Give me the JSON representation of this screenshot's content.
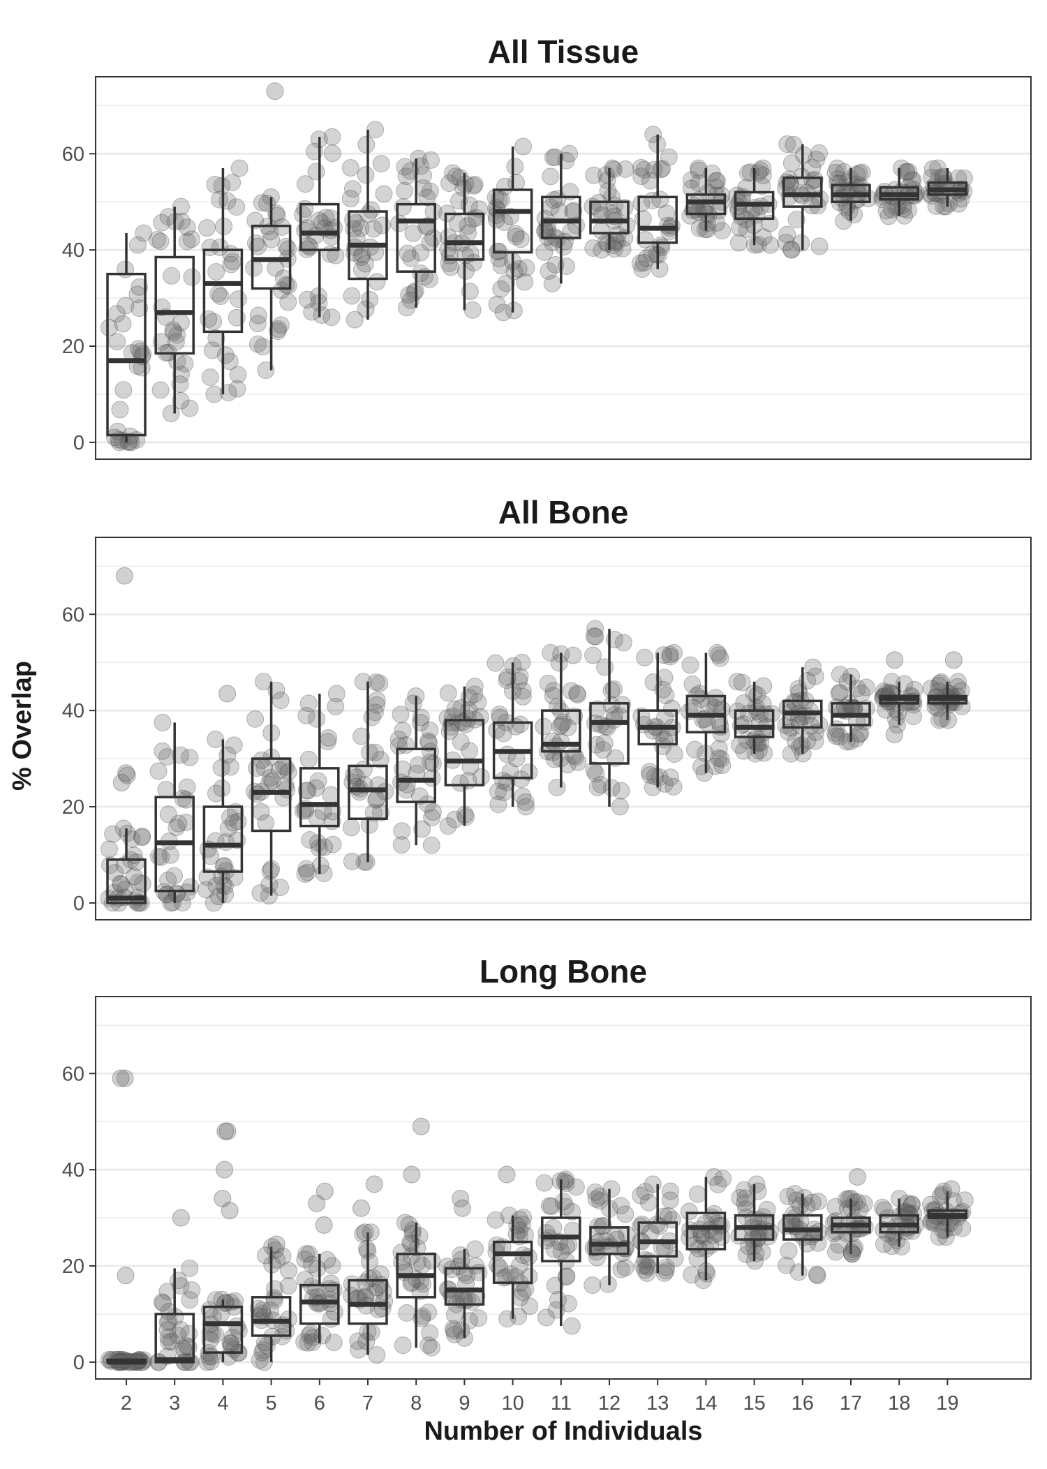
{
  "chart_data": {
    "type": "boxplot",
    "xlabel": "Number of Individuals",
    "ylabel": "% Overlap",
    "ylim": [
      -3.5,
      76
    ],
    "yticks": [
      0,
      20,
      40,
      60
    ],
    "categories": [
      "2",
      "3",
      "4",
      "5",
      "6",
      "7",
      "8",
      "9",
      "10",
      "11",
      "12",
      "13",
      "14",
      "15",
      "16",
      "17",
      "18",
      "19"
    ],
    "grid": true,
    "legend": "none",
    "colors": {
      "box": "#333333",
      "point": "#666666",
      "gridline": "#ebebeb",
      "panel_border": "#333333"
    },
    "panels": [
      {
        "title": "All Tissue",
        "boxes": [
          {
            "x": "2",
            "min": 0,
            "q1": 1.5,
            "median": 17,
            "q3": 35,
            "max": 43.5
          },
          {
            "x": "3",
            "min": 6,
            "q1": 18.5,
            "median": 27,
            "q3": 38.5,
            "max": 49
          },
          {
            "x": "4",
            "min": 10,
            "q1": 23,
            "median": 33,
            "q3": 40,
            "max": 57
          },
          {
            "x": "5",
            "min": 15,
            "q1": 32,
            "median": 38,
            "q3": 45,
            "max": 51
          },
          {
            "x": "6",
            "min": 26,
            "q1": 40,
            "median": 43.5,
            "q3": 49.5,
            "max": 63.5
          },
          {
            "x": "7",
            "min": 25.5,
            "q1": 34,
            "median": 41,
            "q3": 48,
            "max": 65
          },
          {
            "x": "8",
            "min": 28,
            "q1": 35.5,
            "median": 46,
            "q3": 49.5,
            "max": 59
          },
          {
            "x": "9",
            "min": 27.5,
            "q1": 38,
            "median": 41.5,
            "q3": 47.5,
            "max": 56
          },
          {
            "x": "10",
            "min": 27,
            "q1": 39.5,
            "median": 48,
            "q3": 52.5,
            "max": 61.5
          },
          {
            "x": "11",
            "min": 33,
            "q1": 42.5,
            "median": 46,
            "q3": 51,
            "max": 60
          },
          {
            "x": "12",
            "min": 40,
            "q1": 43.5,
            "median": 46,
            "q3": 50,
            "max": 57
          },
          {
            "x": "13",
            "min": 36,
            "q1": 41.5,
            "median": 44.5,
            "q3": 51,
            "max": 64
          },
          {
            "x": "14",
            "min": 44,
            "q1": 47.5,
            "median": 50,
            "q3": 51.5,
            "max": 57
          },
          {
            "x": "15",
            "min": 41,
            "q1": 46.5,
            "median": 49.5,
            "q3": 52,
            "max": 57
          },
          {
            "x": "16",
            "min": 40,
            "q1": 49,
            "median": 51.5,
            "q3": 55,
            "max": 62
          },
          {
            "x": "17",
            "min": 46,
            "q1": 50,
            "median": 51.5,
            "q3": 53.5,
            "max": 57
          },
          {
            "x": "18",
            "min": 47,
            "q1": 50.5,
            "median": 51.5,
            "q3": 53,
            "max": 57
          },
          {
            "x": "19",
            "min": 49,
            "q1": 51.5,
            "median": 52.5,
            "q3": 54,
            "max": 57
          }
        ],
        "outliers": [
          {
            "x": "5",
            "y": 73
          }
        ]
      },
      {
        "title": "All Bone",
        "boxes": [
          {
            "x": "2",
            "min": 0,
            "q1": 0,
            "median": 1,
            "q3": 9,
            "max": 15.5
          },
          {
            "x": "3",
            "min": 0,
            "q1": 2.5,
            "median": 12.5,
            "q3": 22,
            "max": 37.5
          },
          {
            "x": "4",
            "min": 0,
            "q1": 6.5,
            "median": 12,
            "q3": 20,
            "max": 34
          },
          {
            "x": "5",
            "min": 1.5,
            "q1": 15,
            "median": 23,
            "q3": 30,
            "max": 46
          },
          {
            "x": "6",
            "min": 6,
            "q1": 16,
            "median": 20.5,
            "q3": 28,
            "max": 43.5
          },
          {
            "x": "7",
            "min": 8.5,
            "q1": 17.5,
            "median": 23.5,
            "q3": 28.5,
            "max": 46
          },
          {
            "x": "8",
            "min": 12,
            "q1": 21,
            "median": 25.5,
            "q3": 32,
            "max": 43
          },
          {
            "x": "9",
            "min": 16,
            "q1": 24.5,
            "median": 29.5,
            "q3": 38,
            "max": 45
          },
          {
            "x": "10",
            "min": 20,
            "q1": 26,
            "median": 31.5,
            "q3": 37.5,
            "max": 50
          },
          {
            "x": "11",
            "min": 24,
            "q1": 31.5,
            "median": 33,
            "q3": 40,
            "max": 52
          },
          {
            "x": "12",
            "min": 20,
            "q1": 29,
            "median": 37.5,
            "q3": 41.5,
            "max": 57
          },
          {
            "x": "13",
            "min": 24,
            "q1": 33,
            "median": 36.5,
            "q3": 40,
            "max": 52
          },
          {
            "x": "14",
            "min": 27,
            "q1": 35.5,
            "median": 39,
            "q3": 43,
            "max": 52
          },
          {
            "x": "15",
            "min": 31,
            "q1": 34.5,
            "median": 36.5,
            "q3": 40,
            "max": 46
          },
          {
            "x": "16",
            "min": 31,
            "q1": 36.5,
            "median": 39.5,
            "q3": 42,
            "max": 49
          },
          {
            "x": "17",
            "min": 33.5,
            "q1": 37,
            "median": 39,
            "q3": 41.5,
            "max": 47.5
          },
          {
            "x": "18",
            "min": 37,
            "q1": 41.5,
            "median": 42.5,
            "q3": 43,
            "max": 46
          },
          {
            "x": "19",
            "min": 38,
            "q1": 41.5,
            "median": 42.5,
            "q3": 43,
            "max": 46
          }
        ],
        "outliers": [
          {
            "x": "2",
            "y": 68
          },
          {
            "x": "2",
            "y": 26.5
          },
          {
            "x": "2",
            "y": 25
          },
          {
            "x": "2",
            "y": 27
          },
          {
            "x": "4",
            "y": 43.5
          },
          {
            "x": "18",
            "y": 50.5
          },
          {
            "x": "18",
            "y": 35
          },
          {
            "x": "19",
            "y": 50.5
          },
          {
            "x": "19",
            "y": 38
          }
        ]
      },
      {
        "title": "Long Bone",
        "boxes": [
          {
            "x": "2",
            "min": 0,
            "q1": 0,
            "median": 0,
            "q3": 0.5,
            "max": 0.5
          },
          {
            "x": "3",
            "min": 0,
            "q1": 0,
            "median": 0.5,
            "q3": 10,
            "max": 19.5
          },
          {
            "x": "4",
            "min": 0,
            "q1": 2,
            "median": 8,
            "q3": 11.5,
            "max": 13
          },
          {
            "x": "5",
            "min": 0,
            "q1": 5.5,
            "median": 8.5,
            "q3": 13.5,
            "max": 24
          },
          {
            "x": "6",
            "min": 4,
            "q1": 8,
            "median": 12.5,
            "q3": 16,
            "max": 22.5
          },
          {
            "x": "7",
            "min": 1.5,
            "q1": 8,
            "median": 12,
            "q3": 17,
            "max": 27
          },
          {
            "x": "8",
            "min": 3,
            "q1": 13.5,
            "median": 18,
            "q3": 22.5,
            "max": 29
          },
          {
            "x": "9",
            "min": 5,
            "q1": 12,
            "median": 15,
            "q3": 19.5,
            "max": 23.5
          },
          {
            "x": "10",
            "min": 9,
            "q1": 16.5,
            "median": 22.5,
            "q3": 25,
            "max": 30.5
          },
          {
            "x": "11",
            "min": 7.5,
            "q1": 21,
            "median": 26,
            "q3": 30,
            "max": 38
          },
          {
            "x": "12",
            "min": 16,
            "q1": 22.5,
            "median": 24.5,
            "q3": 28,
            "max": 36
          },
          {
            "x": "13",
            "min": 18.5,
            "q1": 22,
            "median": 25,
            "q3": 29,
            "max": 37
          },
          {
            "x": "14",
            "min": 17,
            "q1": 23.5,
            "median": 28,
            "q3": 31,
            "max": 38.5
          },
          {
            "x": "15",
            "min": 21,
            "q1": 25.5,
            "median": 28,
            "q3": 30.5,
            "max": 37
          },
          {
            "x": "16",
            "min": 18,
            "q1": 25.5,
            "median": 27.5,
            "q3": 30.5,
            "max": 35
          },
          {
            "x": "17",
            "min": 22.5,
            "q1": 27,
            "median": 28.5,
            "q3": 30,
            "max": 34
          },
          {
            "x": "18",
            "min": 24,
            "q1": 27,
            "median": 28.5,
            "q3": 30.5,
            "max": 34
          },
          {
            "x": "19",
            "min": 26,
            "q1": 30,
            "median": 30.5,
            "q3": 31.5,
            "max": 35.5
          }
        ],
        "outliers": [
          {
            "x": "2",
            "y": 59
          },
          {
            "x": "2",
            "y": 59
          },
          {
            "x": "2",
            "y": 18
          },
          {
            "x": "3",
            "y": 30
          },
          {
            "x": "4",
            "y": 48
          },
          {
            "x": "4",
            "y": 48
          },
          {
            "x": "4",
            "y": 40
          },
          {
            "x": "4",
            "y": 34
          },
          {
            "x": "4",
            "y": 31.5
          },
          {
            "x": "5",
            "y": 24.5
          },
          {
            "x": "6",
            "y": 35.5
          },
          {
            "x": "6",
            "y": 33
          },
          {
            "x": "6",
            "y": 28.5
          },
          {
            "x": "7",
            "y": 37
          },
          {
            "x": "7",
            "y": 32
          },
          {
            "x": "7",
            "y": 27
          },
          {
            "x": "8",
            "y": 49
          },
          {
            "x": "8",
            "y": 39
          },
          {
            "x": "9",
            "y": 34
          },
          {
            "x": "9",
            "y": 32
          },
          {
            "x": "10",
            "y": 39
          },
          {
            "x": "17",
            "y": 38.5
          },
          {
            "x": "17",
            "y": 22.5
          },
          {
            "x": "19",
            "y": 36
          }
        ]
      }
    ]
  }
}
